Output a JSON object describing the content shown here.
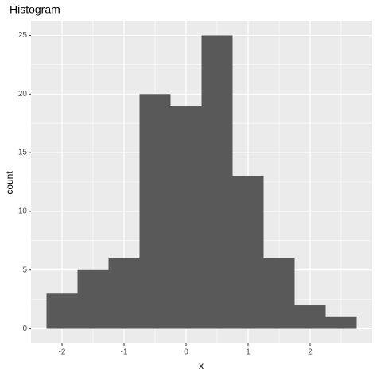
{
  "chart_data": {
    "type": "histogram",
    "title": "Histogram",
    "x_label": "x",
    "y_label": "count",
    "bins": [
      -2.25,
      -1.75,
      -1.25,
      -0.75,
      -0.25,
      0.25,
      0.75,
      1.25,
      1.75,
      2.25,
      2.75
    ],
    "values": [
      3,
      5,
      6,
      20,
      19,
      25,
      13,
      6,
      2,
      1
    ],
    "color": "#595959",
    "xlim": [
      -2.5,
      3.0
    ],
    "xticks": [
      -2,
      -1,
      0,
      1,
      2
    ],
    "ylim": [
      -1.25,
      26.25
    ],
    "yticks": [
      0,
      5,
      10,
      15,
      20,
      25
    ],
    "x_minor_gridlines": [
      -1.5,
      -0.5,
      0.5,
      1.5,
      2.5
    ],
    "y_minor_gridlines": [
      2.5,
      7.5,
      12.5,
      17.5,
      22.5
    ],
    "grid": true
  }
}
